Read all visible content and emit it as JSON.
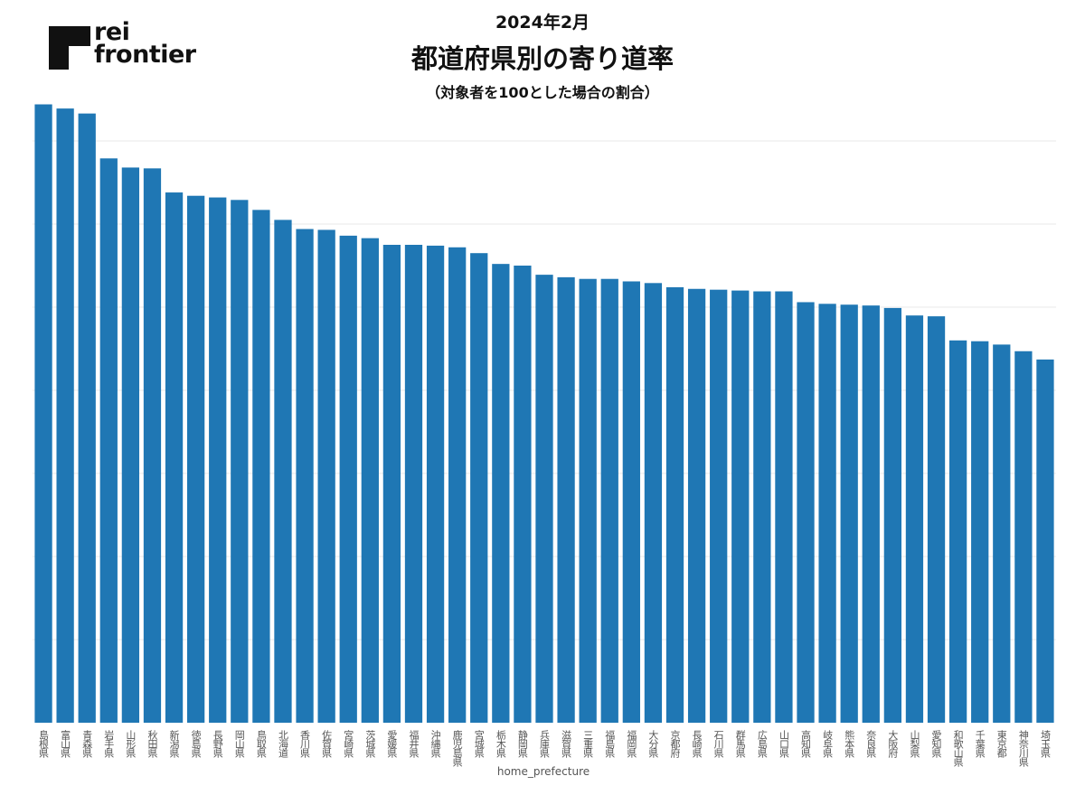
{
  "brand": {
    "logo_line1": "rei",
    "logo_line2": "frontier",
    "logo_icon": "rei-frontier-logo-mark"
  },
  "header": {
    "date": "2024年2月",
    "title": "都道府県別の寄り道率",
    "subtitle": "（対象者を100とした場合の割合）"
  },
  "colors": {
    "bar": "#1f77b4",
    "grid": "#e8e8e8",
    "background": "#ffffff"
  },
  "chart_data": {
    "type": "bar",
    "xlabel": "home_prefecture",
    "ylabel": "",
    "ylim": [
      0,
      75
    ],
    "grid": true,
    "categories": [
      "島根県",
      "富山県",
      "青森県",
      "岩手県",
      "山形県",
      "秋田県",
      "新潟県",
      "徳島県",
      "長野県",
      "岡山県",
      "鳥取県",
      "北海道",
      "香川県",
      "佐賀県",
      "宮崎県",
      "茨城県",
      "愛媛県",
      "福井県",
      "沖縄県",
      "鹿児島県",
      "宮城県",
      "栃木県",
      "静岡県",
      "兵庫県",
      "滋賀県",
      "三重県",
      "福島県",
      "福岡県",
      "大分県",
      "京都府",
      "長崎県",
      "石川県",
      "群馬県",
      "広島県",
      "山口県",
      "高知県",
      "岐阜県",
      "熊本県",
      "奈良県",
      "大阪府",
      "山梨県",
      "愛知県",
      "和歌山県",
      "千葉県",
      "東京都",
      "神奈川県",
      "埼玉県"
    ],
    "values": [
      74.4,
      73.9,
      73.3,
      67.9,
      66.8,
      66.7,
      63.8,
      63.4,
      63.2,
      62.9,
      61.7,
      60.5,
      59.4,
      59.3,
      58.6,
      58.3,
      57.5,
      57.5,
      57.4,
      57.2,
      56.5,
      55.2,
      55.0,
      53.9,
      53.6,
      53.4,
      53.4,
      53.1,
      52.9,
      52.4,
      52.2,
      52.1,
      52.0,
      51.9,
      51.9,
      50.6,
      50.4,
      50.3,
      50.2,
      49.9,
      49.0,
      48.9,
      46.0,
      45.9,
      45.5,
      44.7,
      43.7
    ]
  }
}
